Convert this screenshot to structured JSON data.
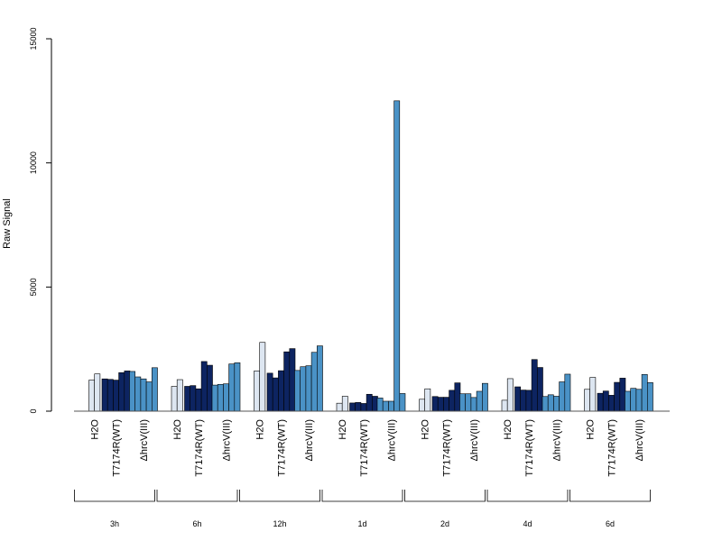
{
  "chart_data": {
    "type": "bar",
    "title": "",
    "xlabel": "",
    "ylabel": "Raw Signal",
    "ylim": [
      0,
      15000
    ],
    "yticks": [
      0,
      5000,
      10000,
      15000
    ],
    "grid": false,
    "group_labels": [
      "H2O",
      "T7174R(WT)",
      "ΔhrcV(III)"
    ],
    "time_points": [
      {
        "label": "3h",
        "groups": [
          {
            "values": [
              1250,
              1500
            ]
          },
          {
            "values": [
              1300,
              1280,
              1250,
              1550,
              1620
            ]
          },
          {
            "values": [
              1600,
              1380,
              1300,
              1180,
              1750
            ]
          }
        ]
      },
      {
        "label": "6h",
        "groups": [
          {
            "values": [
              1000,
              1270
            ]
          },
          {
            "values": [
              1000,
              1030,
              900,
              2000,
              1850
            ]
          },
          {
            "values": [
              1050,
              1080,
              1100,
              1900,
              1950
            ]
          }
        ]
      },
      {
        "label": "12h",
        "groups": [
          {
            "values": [
              1620,
              2770
            ]
          },
          {
            "values": [
              1530,
              1340,
              1630,
              2390,
              2520
            ]
          },
          {
            "values": [
              1640,
              1790,
              1830,
              2370,
              2630
            ]
          }
        ]
      },
      {
        "label": "1d",
        "groups": [
          {
            "values": [
              320,
              600
            ]
          },
          {
            "values": [
              330,
              350,
              310,
              680,
              600
            ]
          },
          {
            "values": [
              530,
              400,
              400,
              12500,
              710
            ]
          }
        ]
      },
      {
        "label": "2d",
        "groups": [
          {
            "values": [
              480,
              900
            ]
          },
          {
            "values": [
              590,
              560,
              560,
              840,
              1140
            ]
          },
          {
            "values": [
              700,
              700,
              550,
              800,
              1120
            ]
          }
        ]
      },
      {
        "label": "4d",
        "groups": [
          {
            "values": [
              440,
              1310
            ]
          },
          {
            "values": [
              980,
              850,
              840,
              2080,
              1760
            ]
          },
          {
            "values": [
              590,
              660,
              600,
              1180,
              1490
            ]
          }
        ]
      },
      {
        "label": "6d",
        "groups": [
          {
            "values": [
              880,
              1360
            ]
          },
          {
            "values": [
              720,
              810,
              640,
              1160,
              1330
            ]
          },
          {
            "values": [
              800,
              920,
              880,
              1480,
              1150
            ]
          }
        ]
      }
    ],
    "colors": {
      "H2O": "#dde6f1",
      "T7174R(WT)": "#0d2461",
      "ΔhrcV(III)": "#4a92c6"
    }
  }
}
